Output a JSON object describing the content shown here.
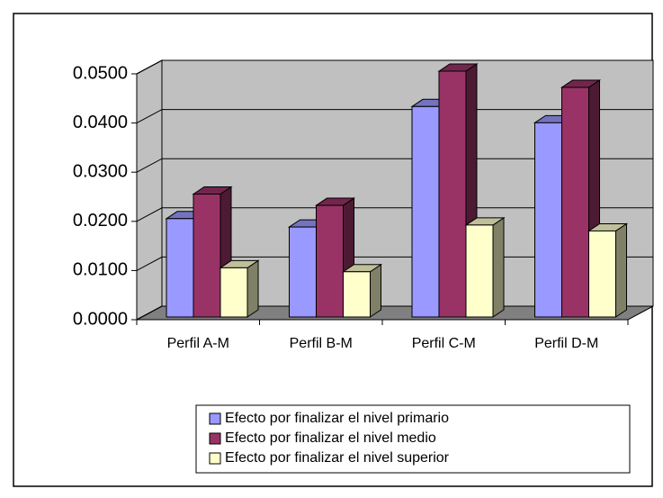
{
  "chart_data": {
    "type": "bar3d",
    "categories": [
      "Perfil A-M",
      "Perfil B-M",
      "Perfil C-M",
      "Perfil D-M"
    ],
    "series": [
      {
        "name": "Efecto por finalizar el nivel primario",
        "color": "#9999ff",
        "values": [
          0.02,
          0.0183,
          0.0428,
          0.0395
        ]
      },
      {
        "name": "Efecto por finalizar el nivel medio",
        "color": "#993366",
        "values": [
          0.025,
          0.0227,
          0.05,
          0.0467
        ]
      },
      {
        "name": "Efecto por finalizar el nivel superior",
        "color": "#ffffcc",
        "values": [
          0.01,
          0.0092,
          0.0187,
          0.0175
        ]
      }
    ],
    "ylim": [
      0,
      0.05
    ],
    "yticks": [
      {
        "value": 0,
        "label": "0.0000"
      },
      {
        "value": 0.01,
        "label": "0.0100"
      },
      {
        "value": 0.02,
        "label": "0.0200"
      },
      {
        "value": 0.03,
        "label": "0.0300"
      },
      {
        "value": 0.04,
        "label": "0.0400"
      },
      {
        "value": 0.05,
        "label": "0.0500"
      }
    ],
    "grid": true,
    "legend": "bottom",
    "wall_color": "#c0c0c0"
  }
}
